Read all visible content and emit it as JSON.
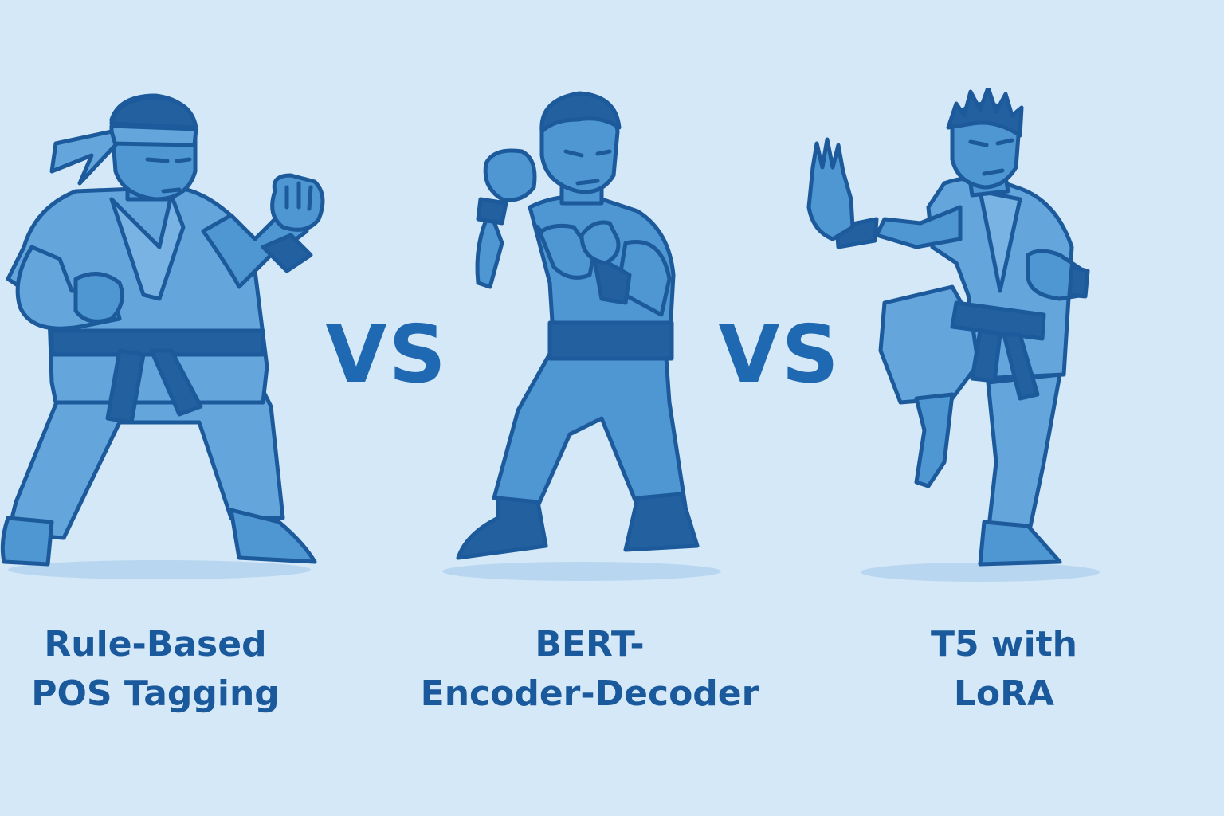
{
  "vs_text": "VS",
  "fighters": [
    {
      "label_line1": "Rule-Based",
      "label_line2": "POS Tagging",
      "style": "karate-headband"
    },
    {
      "label_line1": "BERT-",
      "label_line2": "Encoder-Decoder",
      "style": "boxer"
    },
    {
      "label_line1": "T5 with",
      "label_line2": "LoRA",
      "style": "karate-crane-kick"
    }
  ],
  "colors": {
    "background": "#d4e8f8",
    "outline": "#1c5a9c",
    "body_fill": "#4f97d2",
    "light_fill": "#64a6dc",
    "dark_fill": "#23609f",
    "text": "#1a5a9c",
    "vs": "#1f69b3"
  }
}
